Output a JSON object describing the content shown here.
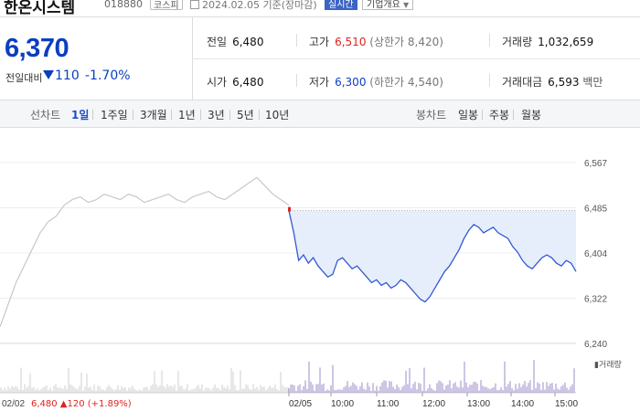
{
  "header": {
    "name": "한온시스템",
    "code": "018880",
    "market": "코스피",
    "date": "2024.02.05 기준(장마감)",
    "realtime": "실시간",
    "info": "기업개요"
  },
  "quote": {
    "price": "6,370",
    "change_label": "전일대비",
    "change": "110",
    "change_pct": "-1.70%",
    "prev_close": {
      "label": "전일",
      "value": "6,480"
    },
    "high": {
      "label": "고가",
      "value": "6,510",
      "sub": "(상한가 8,420)"
    },
    "volume": {
      "label": "거래량",
      "value": "1,032,659"
    },
    "open": {
      "label": "시가",
      "value": "6,480"
    },
    "low": {
      "label": "저가",
      "value": "6,300",
      "sub": "(하한가 4,540)"
    },
    "amount": {
      "label": "거래대금",
      "value": "6,593",
      "unit": "백만"
    }
  },
  "toolbar": {
    "line_label": "선차트",
    "periods": [
      "1일",
      "1주일",
      "3개월",
      "1년",
      "3년",
      "5년",
      "10년"
    ],
    "active_period": "1일",
    "candle_label": "봉차트",
    "candles": [
      "일봉",
      "주봉",
      "월봉"
    ]
  },
  "colors": {
    "today_line": "#3358d4",
    "prev_line": "#c8c8c8",
    "fill": "#e6eefb",
    "up": "#e0241f",
    "down": "#0b3ec2",
    "volume_today": "#9d8ec9",
    "volume_prev": "#cfcfcf"
  },
  "chart_data": {
    "type": "line",
    "y_ticks": [
      "6,567",
      "6,485",
      "6,404",
      "6,322",
      "6,240"
    ],
    "ylim": [
      6240,
      6567
    ],
    "ref_price": 6480,
    "x_ticks": [
      "02/05",
      "10:00",
      "11:00",
      "12:00",
      "13:00",
      "14:00",
      "15:00"
    ],
    "prev_day": {
      "label": "02/02",
      "close": "6,480",
      "change": "▲120",
      "change_pct": "(+1.89%)",
      "values": [
        6270,
        6310,
        6350,
        6380,
        6410,
        6440,
        6460,
        6470,
        6490,
        6500,
        6505,
        6495,
        6500,
        6510,
        6505,
        6500,
        6510,
        6505,
        6495,
        6500,
        6505,
        6510,
        6500,
        6495,
        6505,
        6510,
        6515,
        6505,
        6500,
        6510,
        6520,
        6530,
        6540,
        6525,
        6510,
        6500,
        6490
      ]
    },
    "today": {
      "values": [
        6480,
        6440,
        6390,
        6400,
        6385,
        6395,
        6380,
        6370,
        6360,
        6365,
        6390,
        6395,
        6385,
        6375,
        6380,
        6370,
        6360,
        6350,
        6355,
        6345,
        6350,
        6340,
        6345,
        6355,
        6350,
        6340,
        6330,
        6320,
        6315,
        6325,
        6340,
        6355,
        6370,
        6380,
        6395,
        6410,
        6430,
        6445,
        6455,
        6450,
        6440,
        6445,
        6450,
        6440,
        6435,
        6430,
        6415,
        6405,
        6390,
        6380,
        6375,
        6385,
        6395,
        6400,
        6395,
        6385,
        6380,
        6390,
        6385,
        6370
      ]
    },
    "volume_label": "거래량"
  }
}
